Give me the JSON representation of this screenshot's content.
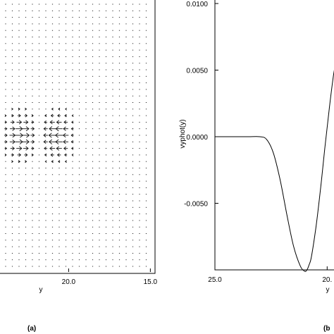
{
  "chart_data": [
    {
      "type": "vector-field",
      "panel_label": "(a)",
      "xlabel": "y",
      "x_ticks": [
        "20.0",
        "15.0"
      ],
      "x_tick_values": [
        20.0,
        15.0
      ],
      "xlim": [
        24.2,
        14.8
      ],
      "ylim": [
        0,
        1
      ],
      "arrow_color": "#111111",
      "description_of_field": [
        {
          "region": "y > 21.5",
          "direction": "right",
          "max_strength": 1.0
        },
        {
          "region": "19.5 < y < 21.5",
          "direction": "left",
          "max_strength": 1.0
        },
        {
          "region": "elsewhere",
          "direction": "small",
          "max_strength": 0.1
        }
      ]
    },
    {
      "type": "line",
      "panel_label": "(b",
      "xlabel": "y",
      "ylabel": "vyphot(y)",
      "x_ticks": [
        "25.0",
        "20."
      ],
      "x_tick_values": [
        25.0,
        20.0
      ],
      "y_ticks": [
        "0.0100",
        "0.0050",
        "0.0000",
        "-0.0050"
      ],
      "y_tick_values": [
        0.01,
        0.005,
        0.0,
        -0.005
      ],
      "xlim": [
        25.0,
        19.35
      ],
      "ylim": [
        -0.01,
        0.01
      ],
      "line_color": "#000000",
      "series": [
        {
          "x": [
            25.0,
            24.5,
            24.0,
            23.5,
            23.0,
            22.7,
            22.4,
            22.1,
            21.8,
            21.5,
            21.2,
            21.0,
            20.9,
            20.8,
            20.7,
            20.5,
            20.3,
            20.1,
            19.9,
            19.7,
            19.5,
            19.35
          ],
          "y": [
            0.0,
            0.0,
            0.0,
            0.0,
            0.0,
            -0.0002,
            -0.0012,
            -0.0032,
            -0.0058,
            -0.0082,
            -0.0097,
            -0.0101,
            -0.01,
            -0.0096,
            -0.009,
            -0.0068,
            -0.004,
            -0.0008,
            0.0022,
            0.0048,
            0.0065,
            0.0074
          ]
        }
      ]
    }
  ]
}
